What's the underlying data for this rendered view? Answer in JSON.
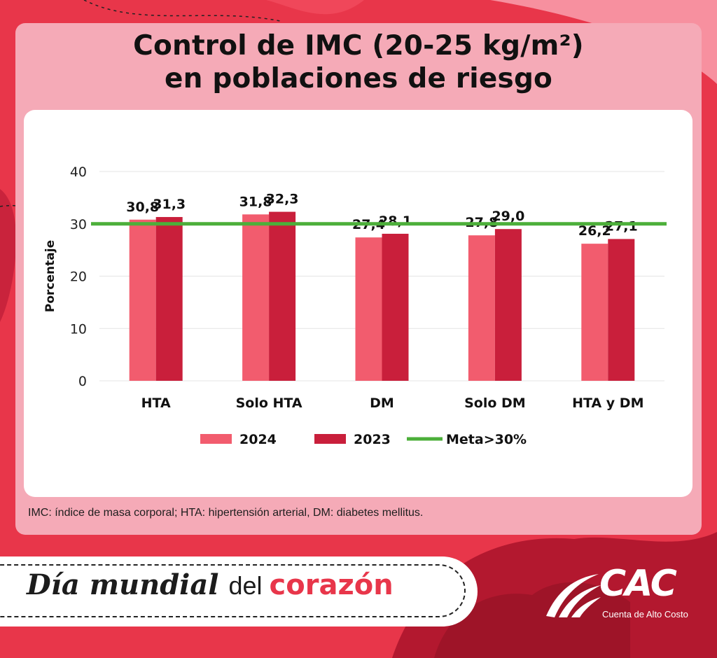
{
  "title_lines": [
    "Control de IMC (20-25 kg/m²)",
    "en poblaciones de riesgo"
  ],
  "footnote": "IMC: índice de masa corporal; HTA: hipertensión arterial, DM: diabetes mellitus.",
  "banner": {
    "part1": "Día mundial",
    "part2": "del",
    "part3": "corazón"
  },
  "logo": {
    "name": "CAC",
    "subtitle": "Cuenta de Alto Costo",
    "icon": "cac-swoosh-icon"
  },
  "colors": {
    "background": "#e8364a",
    "card": "#f5aab7",
    "series_2024": "#f25c6e",
    "series_2023": "#c91f3b",
    "target_line": "#4caf3a"
  },
  "chart_data": {
    "type": "bar",
    "title": "",
    "xlabel": "",
    "ylabel": "Porcentaje",
    "ylim": [
      0,
      40
    ],
    "yticks": [
      0,
      10,
      20,
      30,
      40
    ],
    "grid": true,
    "legend_position": "bottom",
    "categories": [
      "HTA",
      "Solo HTA",
      "DM",
      "Solo DM",
      "HTA y DM"
    ],
    "series": [
      {
        "name": "2024",
        "values": [
          30.8,
          31.8,
          27.4,
          27.8,
          26.2
        ],
        "labels": [
          "30,8",
          "31,8",
          "27,4",
          "27,8",
          "26,2"
        ]
      },
      {
        "name": "2023",
        "values": [
          31.3,
          32.3,
          28.1,
          29.0,
          27.1
        ],
        "labels": [
          "31,3",
          "32,3",
          "28,1",
          "29,0",
          "27,1"
        ]
      }
    ],
    "reference_line": {
      "name": "Meta>30%",
      "value": 30
    }
  }
}
